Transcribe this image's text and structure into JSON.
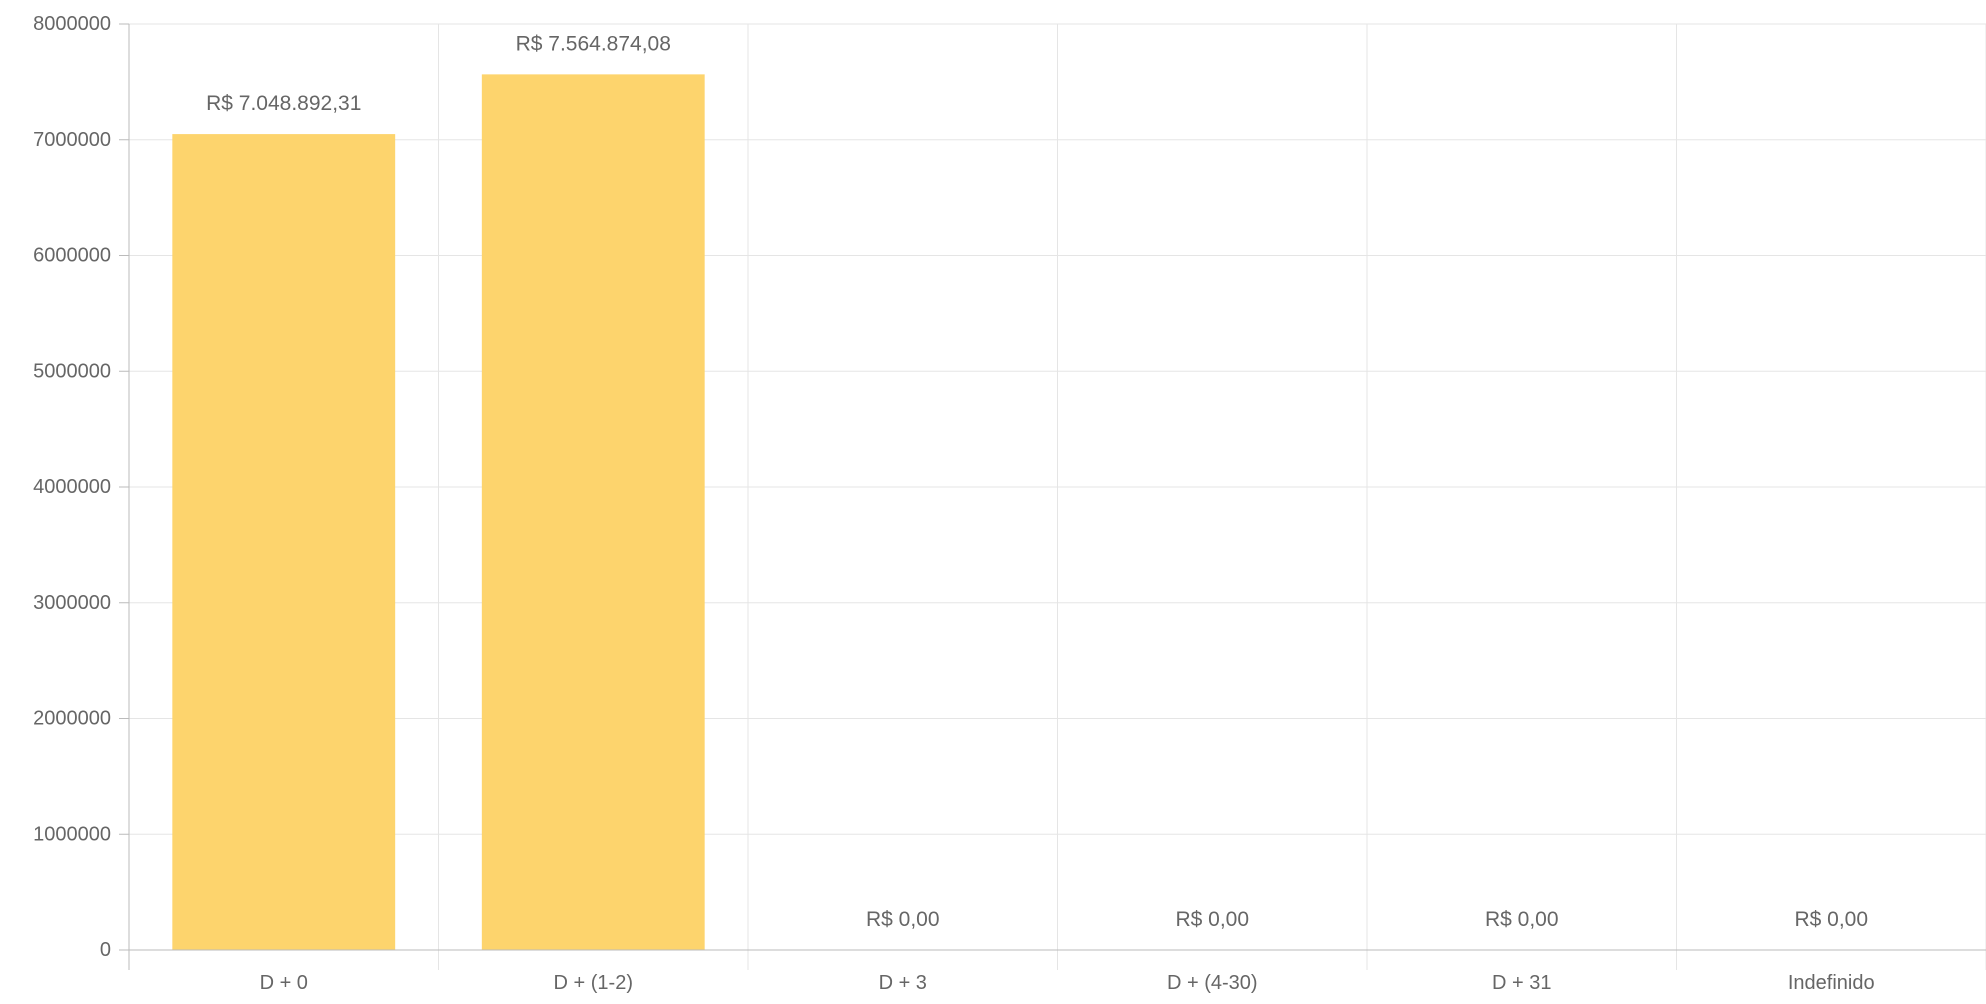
{
  "chart_data": {
    "type": "bar",
    "title": "",
    "xlabel": "",
    "ylabel": "",
    "categories": [
      "D + 0",
      "D + (1-2)",
      "D + 3",
      "D + (4-30)",
      "D + 31",
      "Indefinido"
    ],
    "values": [
      7048892.31,
      7564874.08,
      0,
      0,
      0,
      0
    ],
    "data_labels": [
      "R$ 7.048.892,31",
      "R$ 7.564.874,08",
      "R$ 0,00",
      "R$ 0,00",
      "R$ 0,00",
      "R$ 0,00"
    ],
    "y_ticks": [
      0,
      1000000,
      2000000,
      3000000,
      4000000,
      5000000,
      6000000,
      7000000,
      8000000
    ],
    "y_tick_labels": [
      "0",
      "1000000",
      "2000000",
      "3000000",
      "4000000",
      "5000000",
      "6000000",
      "7000000",
      "8000000"
    ],
    "ylim": [
      0,
      8000000
    ],
    "grid": true,
    "legend": "none",
    "colors": {
      "bar": "#FDD46D",
      "grid": "#E5E5E5",
      "axis": "#BBBBBB",
      "text": "#666666"
    }
  }
}
